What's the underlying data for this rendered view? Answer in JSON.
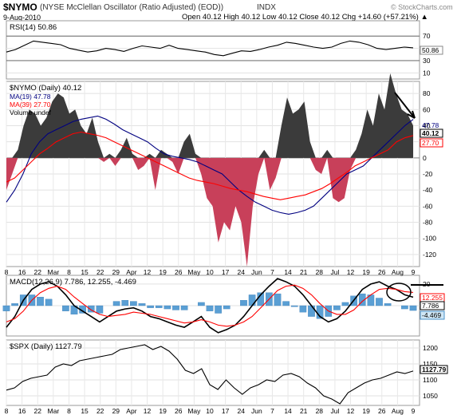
{
  "header": {
    "symbol": "$NYMO",
    "description": "(NYSE McClellan Oscillator (Ratio Adjusted) (EOD))",
    "exchange": "INDX",
    "date": "9-Aug-2010",
    "watermark": "© StockCharts.com",
    "ohlc": "Open 40.12  High 40.12  Low 40.12  Close 40.12  Chg +14.60 (+57.21%) ▲"
  },
  "chart_data": [
    {
      "type": "line",
      "name": "rsi-panel",
      "label": "RSI(14) 50.86",
      "last_value_label": "50.86",
      "y_ticks": [
        70,
        50,
        30,
        10
      ],
      "ylim": [
        0,
        95
      ],
      "reference_lines": [
        70,
        30
      ],
      "series": [
        {
          "name": "RSI(14)",
          "color": "#000000",
          "values": [
            44,
            48,
            55,
            62,
            60,
            58,
            56,
            50,
            47,
            44,
            46,
            50,
            48,
            45,
            50,
            54,
            52,
            50,
            55,
            50,
            48,
            46,
            44,
            40,
            38,
            42,
            46,
            45,
            48,
            52,
            55,
            60,
            58,
            55,
            52,
            50,
            52,
            58,
            62,
            60,
            56,
            50,
            48,
            50,
            52,
            50.86
          ]
        }
      ]
    },
    {
      "type": "area",
      "name": "nymo-panel",
      "label": "$NYMO (Daily) 40.12",
      "legend": [
        "MA(19) 47.78",
        "MA(39) 27.70",
        "Volume undef"
      ],
      "last_value_labels": [
        "47.78",
        "40.12",
        "27.70"
      ],
      "y_ticks": [
        80,
        60,
        40,
        20,
        0,
        -20,
        -40,
        -60,
        -80,
        -100,
        -120
      ],
      "ylim": [
        -135,
        95
      ],
      "x_labels": [
        "8",
        "16",
        "22",
        "Mar",
        "8",
        "15",
        "22",
        "29",
        "Apr",
        "12",
        "19",
        "26",
        "May",
        "10",
        "17",
        "24",
        "Jun",
        "7",
        "14",
        "21",
        "28",
        "Jul",
        "12",
        "19",
        "26",
        "Aug",
        "9"
      ],
      "series": [
        {
          "name": "$NYMO",
          "color": "#000000",
          "values": [
            -40,
            -20,
            10,
            40,
            60,
            55,
            40,
            50,
            70,
            80,
            75,
            55,
            60,
            40,
            30,
            50,
            20,
            -5,
            5,
            -10,
            10,
            25,
            5,
            -15,
            -10,
            5,
            -40,
            10,
            5,
            -5,
            -20,
            20,
            30,
            5,
            -20,
            -50,
            -60,
            -105,
            -80,
            -90,
            -60,
            -80,
            -135,
            -60,
            -20,
            10,
            -40,
            -25,
            40,
            75,
            55,
            60,
            70,
            20,
            -15,
            -20,
            10,
            -50,
            -55,
            -50,
            -15,
            10,
            30,
            60,
            40,
            80,
            60,
            105,
            80,
            60,
            55,
            40.12
          ]
        },
        {
          "name": "MA(19)",
          "color": "#000080",
          "values": [
            -55,
            -40,
            -20,
            5,
            20,
            30,
            35,
            40,
            45,
            48,
            50,
            52,
            48,
            42,
            35,
            30,
            25,
            20,
            12,
            5,
            2,
            0,
            -2,
            -5,
            -10,
            -15,
            -20,
            -30,
            -40,
            -48,
            -55,
            -60,
            -65,
            -68,
            -70,
            -68,
            -65,
            -60,
            -50,
            -40,
            -30,
            -20,
            -15,
            -10,
            0,
            10,
            20,
            30,
            40,
            47.78
          ]
        },
        {
          "name": "MA(39)",
          "color": "#ff0000",
          "values": [
            -30,
            -25,
            -15,
            -5,
            5,
            12,
            20,
            25,
            30,
            32,
            30,
            28,
            25,
            20,
            15,
            10,
            5,
            0,
            -5,
            -10,
            -15,
            -20,
            -25,
            -28,
            -30,
            -32,
            -35,
            -38,
            -40,
            -42,
            -45,
            -48,
            -50,
            -52,
            -50,
            -48,
            -46,
            -42,
            -38,
            -32,
            -25,
            -18,
            -10,
            -5,
            0,
            5,
            10,
            20,
            25,
            27.7
          ]
        }
      ]
    },
    {
      "type": "line",
      "name": "macd-panel",
      "label": "MACD(12,26,9) 7.786, 12.255, -4.469",
      "last_value_labels": [
        "12.255",
        "7.786",
        "-4.469"
      ],
      "y_ticks": [
        20,
        0
      ],
      "ylim": [
        -28,
        28
      ],
      "series": [
        {
          "name": "MACD",
          "color": "#000000",
          "values": [
            -20,
            -10,
            5,
            15,
            20,
            22,
            18,
            10,
            0,
            -5,
            -10,
            -15,
            -10,
            -5,
            -3,
            -2,
            -5,
            -10,
            -12,
            -15,
            -18,
            -20,
            -15,
            -10,
            -20,
            -25,
            -22,
            -18,
            -10,
            0,
            10,
            18,
            25,
            22,
            18,
            10,
            0,
            -10,
            -15,
            -12,
            -5,
            5,
            15,
            20,
            22,
            18,
            15,
            10,
            7.786
          ]
        },
        {
          "name": "Signal",
          "color": "#ff0000",
          "values": [
            -15,
            -12,
            -5,
            5,
            12,
            16,
            18,
            15,
            8,
            2,
            -4,
            -8,
            -10,
            -9,
            -8,
            -6,
            -7,
            -8,
            -10,
            -12,
            -14,
            -16,
            -15,
            -13,
            -15,
            -18,
            -19,
            -18,
            -15,
            -10,
            -2,
            6,
            14,
            18,
            19,
            16,
            10,
            2,
            -5,
            -8,
            -8,
            -4,
            4,
            10,
            15,
            16,
            15,
            13,
            12.255
          ]
        }
      ],
      "histogram": [
        -5,
        2,
        10,
        10,
        8,
        6,
        0,
        -5,
        -8,
        -7,
        -6,
        -7,
        0,
        4,
        5,
        4,
        2,
        -2,
        -2,
        -3,
        -4,
        -4,
        0,
        3,
        -5,
        -7,
        -3,
        0,
        5,
        10,
        12,
        12,
        11,
        4,
        -1,
        -6,
        -10,
        -12,
        -10,
        -4,
        3,
        9,
        11,
        10,
        7,
        2,
        0,
        -3,
        -4.469
      ]
    },
    {
      "type": "line",
      "name": "spx-panel",
      "label": "$SPX (Daily) 1127.79",
      "last_value_label": "1127.79",
      "y_ticks": [
        1200,
        1150,
        1100,
        1050
      ],
      "ylim": [
        1020,
        1225
      ],
      "x_labels": [
        "8",
        "16",
        "22",
        "Mar",
        "8",
        "15",
        "22",
        "29",
        "Apr",
        "12",
        "19",
        "26",
        "May",
        "10",
        "17",
        "24",
        "Jun",
        "7",
        "14",
        "21",
        "28",
        "Jul",
        "12",
        "19",
        "26",
        "Aug",
        "9"
      ],
      "series": [
        {
          "name": "$SPX",
          "color": "#000000",
          "values": [
            1068,
            1075,
            1095,
            1105,
            1110,
            1115,
            1140,
            1150,
            1145,
            1160,
            1165,
            1170,
            1175,
            1180,
            1195,
            1200,
            1205,
            1210,
            1195,
            1205,
            1190,
            1165,
            1130,
            1120,
            1135,
            1085,
            1070,
            1100,
            1075,
            1055,
            1075,
            1085,
            1100,
            1095,
            1115,
            1120,
            1110,
            1090,
            1075,
            1050,
            1040,
            1025,
            1060,
            1075,
            1090,
            1100,
            1105,
            1115,
            1125,
            1120,
            1127.79
          ]
        }
      ]
    }
  ]
}
